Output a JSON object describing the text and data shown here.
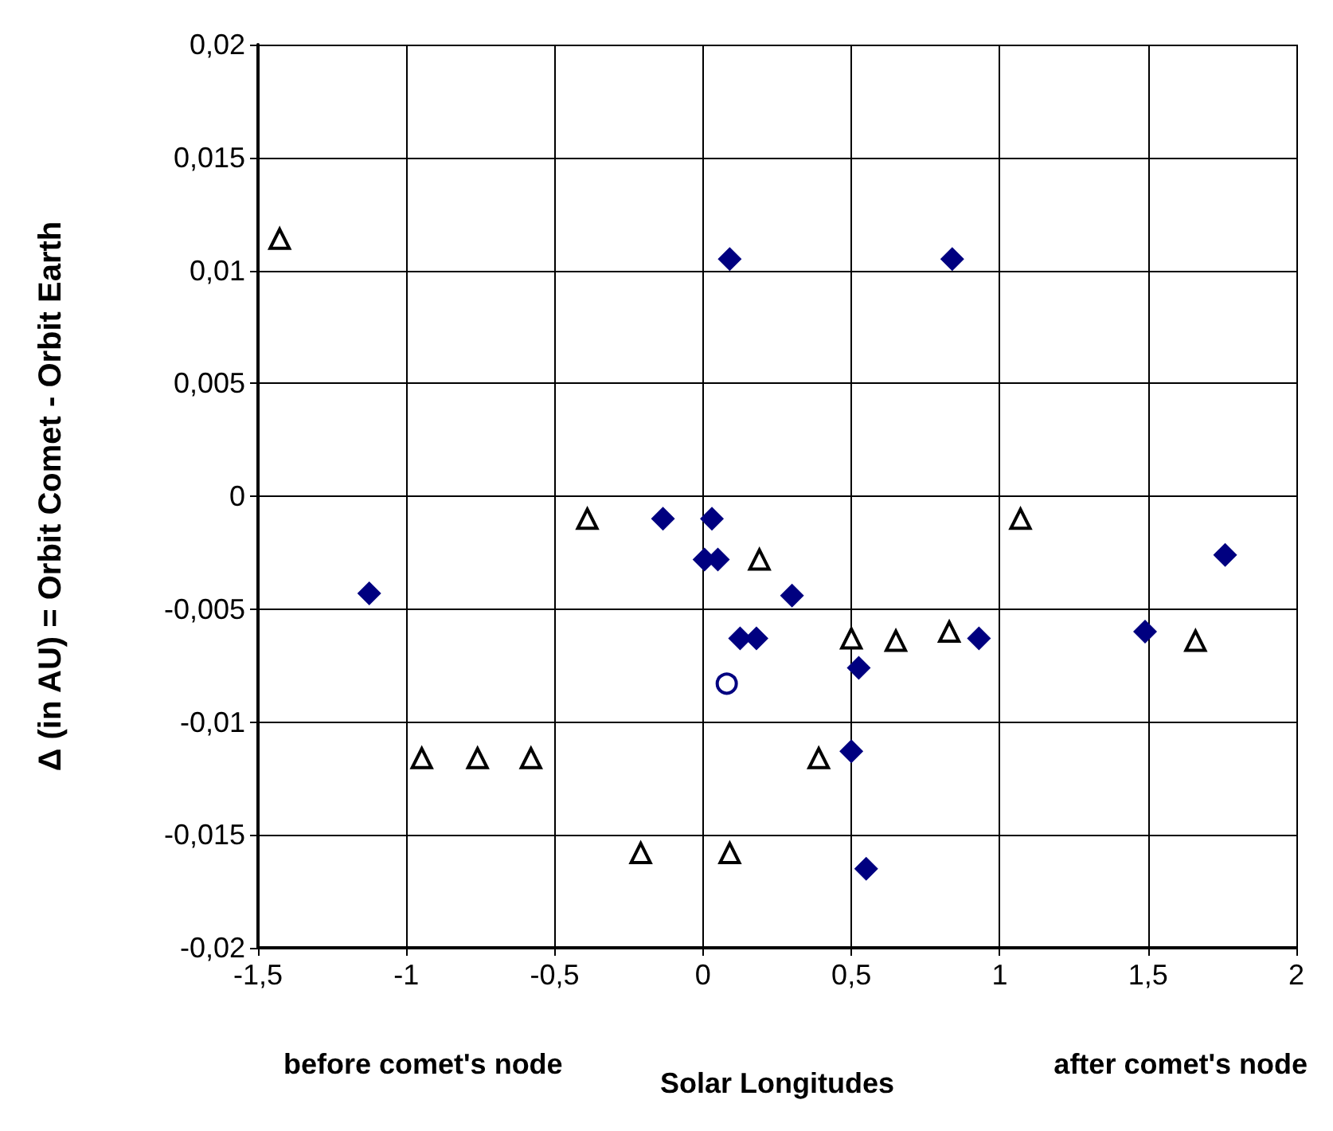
{
  "chart_data": {
    "type": "scatter",
    "xlabel": "Solar Longitudes",
    "ylabel": "Δ (in AU) = Orbit Comet - Orbit Earth",
    "annotations": [
      "before comet's node",
      "after comet's node"
    ],
    "xlim": [
      -1.5,
      2
    ],
    "xticks": [
      {
        "value": -1.5,
        "label": "-1,5"
      },
      -1,
      {
        "value": -0.5,
        "label": "-0,5"
      },
      0,
      {
        "value": 0.5,
        "label": "0,5"
      },
      1,
      {
        "value": 1.5,
        "label": "1,5"
      },
      2
    ],
    "ylim": [
      -0.02,
      0.02
    ],
    "yticks": [
      {
        "value": -0.02,
        "label": "-0,02"
      },
      {
        "value": -0.015,
        "label": "-0,015"
      },
      {
        "value": -0.01,
        "label": "-0,01"
      },
      {
        "value": -0.005,
        "label": "-0,005"
      },
      0,
      {
        "value": 0.005,
        "label": "0,005"
      },
      {
        "value": 0.01,
        "label": "0,01"
      },
      {
        "value": 0.015,
        "label": "0,015"
      },
      {
        "value": 0.02,
        "label": "0,02"
      }
    ],
    "grid": true,
    "series": [
      {
        "marker": "triangle",
        "color": "#000000",
        "x": [
          -1.427,
          -0.948,
          -0.76,
          -0.58,
          -0.39,
          -0.21,
          0.09,
          0.19,
          0.39,
          0.5,
          0.65,
          0.83,
          1.07,
          1.66
        ],
        "values": [
          0.0114,
          -0.0116,
          -0.0116,
          -0.0116,
          -0.001,
          -0.0158,
          -0.0158,
          -0.0028,
          -0.0116,
          -0.0063,
          -0.0064,
          -0.006,
          -0.001,
          -0.0064
        ]
      },
      {
        "marker": "diamond",
        "color": "#000080",
        "x": [
          -1.125,
          0.09,
          0.84,
          -0.135,
          0.03,
          0.005,
          0.05,
          0.3,
          0.125,
          0.18,
          0.525,
          0.5,
          0.55,
          0.93,
          1.49,
          1.76
        ],
        "values": [
          -0.0043,
          0.0105,
          0.0105,
          -0.001,
          -0.001,
          -0.0028,
          -0.0028,
          -0.0044,
          -0.0063,
          -0.0063,
          -0.0076,
          -0.0113,
          -0.0165,
          -0.0063,
          -0.006,
          -0.0026
        ]
      },
      {
        "marker": "circle",
        "color": "#000080",
        "x": [
          0.08
        ],
        "values": [
          -0.0083
        ]
      }
    ]
  }
}
